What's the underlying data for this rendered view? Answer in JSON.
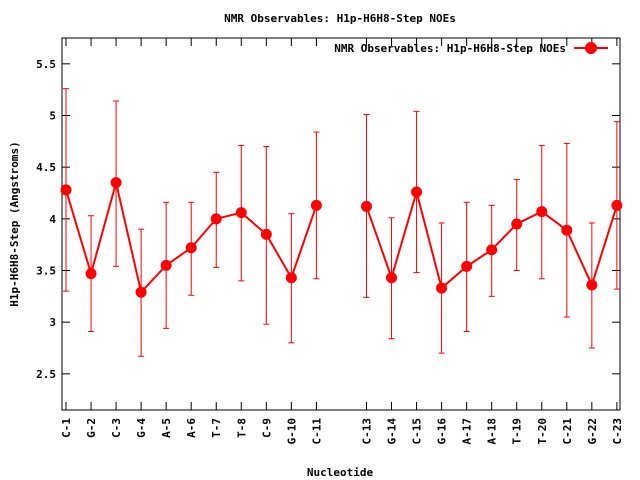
{
  "chart_data": {
    "type": "line",
    "title": "NMR Observables: H1p-H6H8-Step NOEs",
    "xlabel": "Nucleotide",
    "ylabel": "H1p-H6H8-Step (Angstroms)",
    "ylim": [
      2.15,
      5.75
    ],
    "yticks": [
      2.5,
      3,
      3.5,
      4,
      4.5,
      5,
      5.5
    ],
    "legend_position": "top-right",
    "grid": false,
    "colors": {
      "series": "#ff0000",
      "axis": "#000000",
      "background": "#ffffff"
    },
    "categories": [
      "C-1",
      "G-2",
      "C-3",
      "G-4",
      "A-5",
      "A-6",
      "T-7",
      "T-8",
      "C-9",
      "G-10",
      "C-11",
      "C-13",
      "G-14",
      "C-15",
      "G-16",
      "A-17",
      "A-18",
      "T-19",
      "T-20",
      "C-21",
      "G-22",
      "C-23"
    ],
    "series": [
      {
        "name": "NMR Observables: H1p-H6H8-Step NOEs",
        "values": [
          4.28,
          3.47,
          4.35,
          3.29,
          3.55,
          3.72,
          4.0,
          4.06,
          3.85,
          3.43,
          4.13,
          4.12,
          3.43,
          4.26,
          3.33,
          3.54,
          3.7,
          3.95,
          4.07,
          3.89,
          3.36,
          4.13
        ],
        "err_low": [
          3.3,
          2.91,
          3.54,
          2.67,
          2.94,
          3.26,
          3.53,
          3.4,
          2.98,
          2.8,
          3.42,
          3.24,
          2.84,
          3.48,
          2.7,
          2.91,
          3.25,
          3.5,
          3.42,
          3.05,
          2.75,
          3.32
        ],
        "err_high": [
          5.26,
          4.03,
          5.14,
          3.9,
          4.16,
          4.16,
          4.45,
          4.71,
          4.7,
          4.05,
          4.84,
          5.01,
          4.01,
          5.04,
          3.96,
          4.16,
          4.13,
          4.38,
          4.71,
          4.73,
          3.96,
          4.94
        ],
        "segments": [
          [
            0,
            10
          ],
          [
            11,
            21
          ]
        ]
      }
    ]
  }
}
